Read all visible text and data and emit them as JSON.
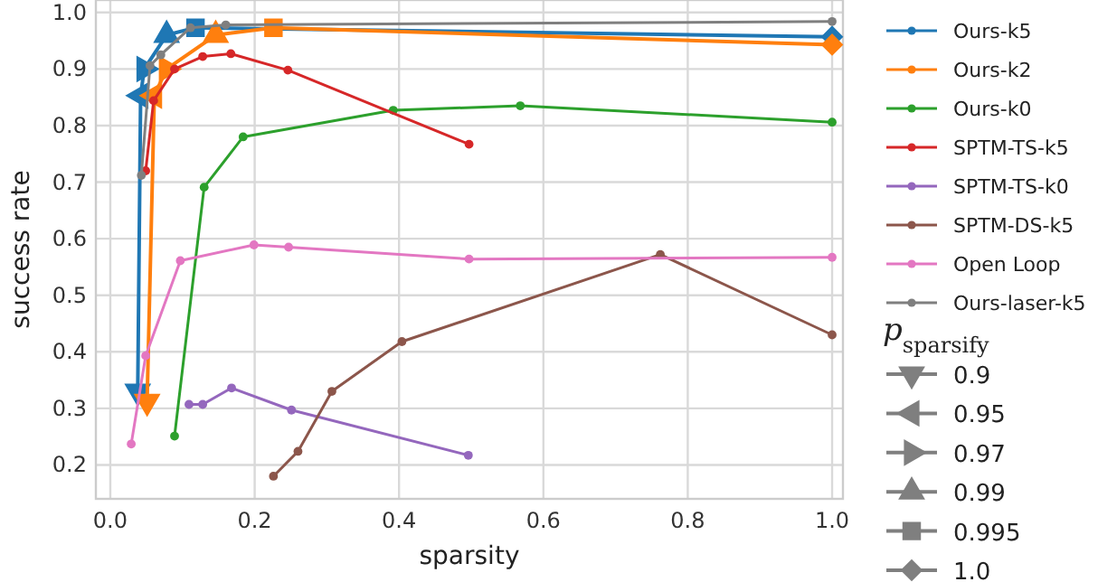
{
  "chart_data": {
    "type": "line",
    "xlabel": "sparsity",
    "ylabel": "success rate",
    "xlim": [
      -0.02,
      1.015
    ],
    "ylim": [
      0.14,
      1.022
    ],
    "xticks": [
      {
        "value": 0,
        "label": "0.0"
      },
      {
        "value": 0.2,
        "label": "0.2"
      },
      {
        "value": 0.4,
        "label": "0.4"
      },
      {
        "value": 0.6,
        "label": "0.6"
      },
      {
        "value": 0.8,
        "label": "0.8"
      },
      {
        "value": 1,
        "label": "1.0"
      }
    ],
    "yticks": [
      {
        "value": 0.2,
        "label": "0.2"
      },
      {
        "value": 0.3,
        "label": "0.3"
      },
      {
        "value": 0.4,
        "label": "0.4"
      },
      {
        "value": 0.5,
        "label": "0.5"
      },
      {
        "value": 0.6,
        "label": "0.6"
      },
      {
        "value": 0.7,
        "label": "0.7"
      },
      {
        "value": 0.8,
        "label": "0.8"
      },
      {
        "value": 0.9,
        "label": "0.9"
      },
      {
        "value": 1,
        "label": "1.0"
      }
    ],
    "grid": true,
    "legend": "right",
    "legend_title": "p$_{sparsify}$",
    "series": [
      {
        "name": "Ours-k5",
        "color": "#1f77b4",
        "marker": "triangle",
        "x": [
          0.038,
          0.042,
          0.047,
          0.078,
          0.118,
          1.0
        ],
        "values": [
          0.33,
          0.853,
          0.9,
          0.96,
          0.973,
          0.957
        ]
      },
      {
        "name": "Ours-k2",
        "color": "#ff7f0e",
        "marker": "triangle",
        "x": [
          0.051,
          0.061,
          0.078,
          0.146,
          0.226,
          1.0
        ],
        "values": [
          0.312,
          0.853,
          0.9,
          0.96,
          0.973,
          0.943
        ]
      },
      {
        "name": "Ours-k0",
        "color": "#2ca02c",
        "marker": "circle",
        "x": [
          0.089,
          0.13,
          0.184,
          0.392,
          0.568,
          1.0
        ],
        "values": [
          0.251,
          0.691,
          0.78,
          0.827,
          0.835,
          0.806
        ]
      },
      {
        "name": "SPTM-TS-k5",
        "color": "#d62728",
        "marker": "circle",
        "x": [
          0.049,
          0.06,
          0.089,
          0.128,
          0.167,
          0.246,
          0.497
        ],
        "values": [
          0.72,
          0.844,
          0.9,
          0.922,
          0.927,
          0.898,
          0.767
        ]
      },
      {
        "name": "SPTM-TS-k0",
        "color": "#9467bd",
        "marker": "circle",
        "x": [
          0.109,
          0.128,
          0.168,
          0.251,
          0.496
        ],
        "values": [
          0.307,
          0.307,
          0.336,
          0.297,
          0.217
        ]
      },
      {
        "name": "SPTM-DS-k5",
        "color": "#8c564b",
        "marker": "circle",
        "x": [
          0.226,
          0.26,
          0.307,
          0.404,
          0.762,
          1.0
        ],
        "values": [
          0.18,
          0.224,
          0.33,
          0.418,
          0.572,
          0.43
        ]
      },
      {
        "name": "Open Loop",
        "color": "#e377c2",
        "marker": "circle",
        "x": [
          0.029,
          0.049,
          0.097,
          0.199,
          0.247,
          0.497,
          1.0
        ],
        "values": [
          0.237,
          0.393,
          0.561,
          0.589,
          0.585,
          0.564,
          0.567
        ]
      },
      {
        "name": "Ours-laser-k5",
        "color": "#7f7f7f",
        "marker": "circle",
        "x": [
          0.043,
          0.055,
          0.07,
          0.111,
          0.16,
          1.0
        ],
        "values": [
          0.712,
          0.906,
          0.925,
          0.973,
          0.978,
          0.984
        ]
      }
    ],
    "annotations": [
      "0.9",
      "0.95",
      "0.97",
      "0.99",
      "0.995",
      "1.0"
    ]
  }
}
